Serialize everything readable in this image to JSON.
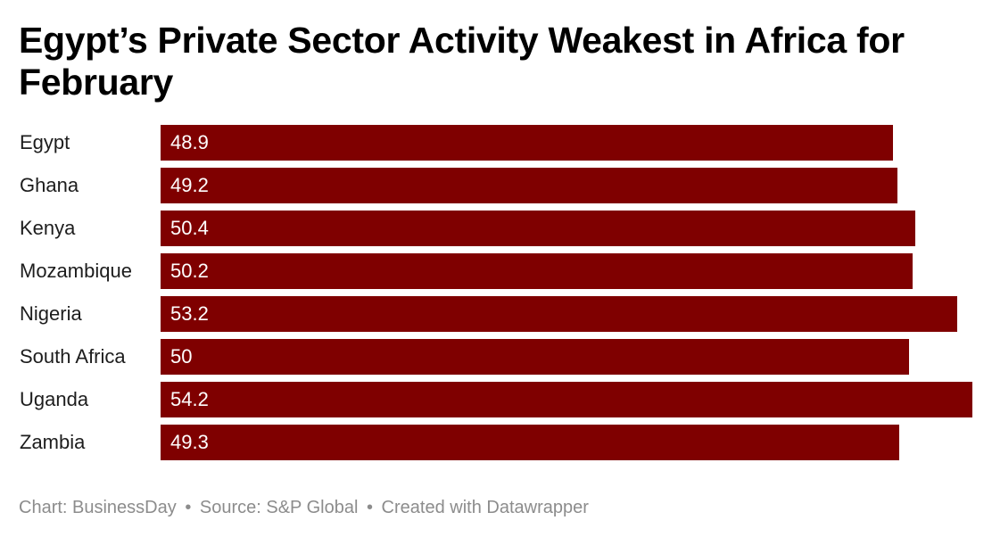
{
  "title": "Egypt’s Private Sector Activity Weakest in Africa for February",
  "footer": {
    "chart_credit": "Chart: BusinessDay",
    "source": "Source: S&P Global",
    "created_with": "Created with Datawrapper",
    "separator": "•"
  },
  "colors": {
    "bar": "#7f0000",
    "value_label": "#ffffff",
    "footer_text": "#8c8c8c"
  },
  "chart_data": {
    "type": "bar",
    "orientation": "horizontal",
    "title": "Egypt’s Private Sector Activity Weakest in Africa for February",
    "categories": [
      "Egypt",
      "Ghana",
      "Kenya",
      "Mozambique",
      "Nigeria",
      "South Africa",
      "Uganda",
      "Zambia"
    ],
    "values": [
      48.9,
      49.2,
      50.4,
      50.2,
      53.2,
      50,
      54.2,
      49.3
    ],
    "value_labels": [
      "48.9",
      "49.2",
      "50.4",
      "50.2",
      "53.2",
      "50",
      "54.2",
      "49.3"
    ],
    "xlim": [
      0,
      54.2
    ],
    "grid": false,
    "xlabel": "",
    "ylabel": ""
  }
}
